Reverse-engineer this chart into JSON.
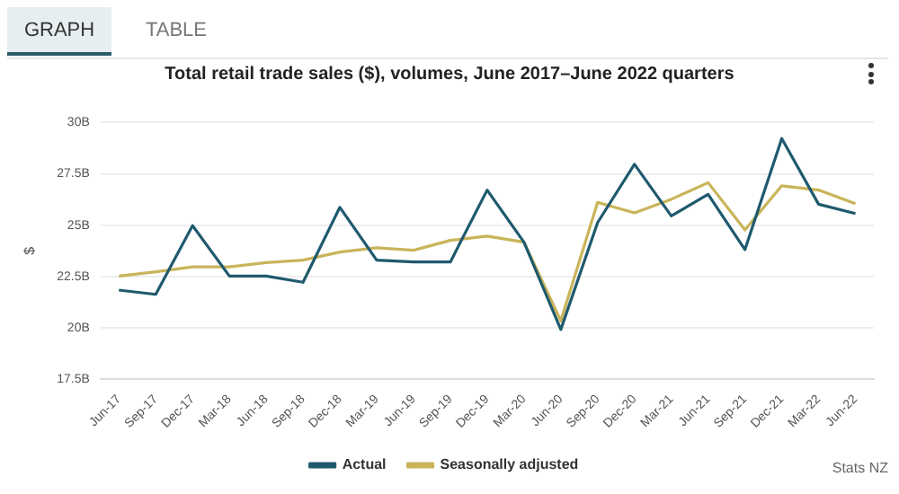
{
  "chart_data": {
    "type": "line",
    "title": "Total retail trade sales ($), volumes, June 2017–June 2022 quarters",
    "ylabel": "$",
    "categories": [
      "Jun-17",
      "Sep-17",
      "Dec-17",
      "Mar-18",
      "Jun-18",
      "Sep-18",
      "Dec-18",
      "Mar-19",
      "Jun-19",
      "Sep-19",
      "Dec-19",
      "Mar-20",
      "Jun-20",
      "Sep-20",
      "Dec-20",
      "Mar-21",
      "Jun-21",
      "Sep-21",
      "Dec-21",
      "Mar-22",
      "Jun-22"
    ],
    "series": [
      {
        "name": "Actual",
        "color": "#1f5a6e",
        "values": [
          21.84,
          21.63,
          24.98,
          22.52,
          22.52,
          22.22,
          25.87,
          23.3,
          23.21,
          23.21,
          26.71,
          24.17,
          19.92,
          25.13,
          27.97,
          25.45,
          26.5,
          23.81,
          29.22,
          26.02,
          25.57
        ]
      },
      {
        "name": "Seasonally adjusted",
        "color": "#c9b45a",
        "values": [
          22.52,
          22.73,
          22.97,
          22.97,
          23.18,
          23.3,
          23.69,
          23.9,
          23.78,
          24.26,
          24.47,
          24.17,
          20.34,
          26.11,
          25.6,
          26.26,
          27.07,
          24.77,
          26.92,
          26.71,
          26.05
        ]
      }
    ],
    "ylim": [
      17.5,
      30
    ],
    "yticks": [
      {
        "value": 17.5,
        "label": "17.5B"
      },
      {
        "value": 20,
        "label": "20B"
      },
      {
        "value": 22.5,
        "label": "22.5B"
      },
      {
        "value": 25,
        "label": "25B"
      },
      {
        "value": 27.5,
        "label": "27.5B"
      },
      {
        "value": 30,
        "label": "30B"
      }
    ],
    "grid": "y",
    "legend": "bottom",
    "marker": "none",
    "line_style": "solid",
    "annotations": [
      "GRAPH",
      "TABLE",
      "Stats NZ"
    ]
  }
}
